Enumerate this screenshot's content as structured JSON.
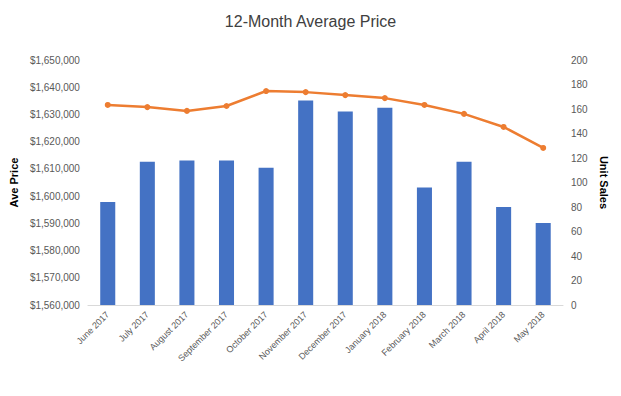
{
  "chart_data": {
    "type": "bar",
    "title": "12-Month Average Price",
    "y_label": "Ave Price",
    "y2_label": "Unit Sales",
    "categories": [
      "June 2017",
      "July 2017",
      "August 2017",
      "September 2017",
      "October 2017",
      "November 2017",
      "December 2017",
      "January 2018",
      "February 2018",
      "March 2018",
      "April 2018",
      "May 2018"
    ],
    "series": [
      {
        "name": "Unit Sales",
        "type": "bar",
        "axis": "y2",
        "color": "#4472c4",
        "values": [
          84,
          117,
          118,
          118,
          112,
          167,
          158,
          161,
          96,
          117,
          80,
          67
        ]
      },
      {
        "name": "Ave Price",
        "type": "line",
        "color": "#ed7d31",
        "marker": "circle",
        "values": [
          1633500,
          1632700,
          1631300,
          1633100,
          1638600,
          1638200,
          1637100,
          1636000,
          1633500,
          1630200,
          1625400,
          1617700
        ]
      }
    ],
    "ylim": [
      1560000,
      1650000
    ],
    "yticks": [
      {
        "value": 1560000,
        "label": "$1,560,000"
      },
      {
        "value": 1570000,
        "label": "$1,570,000"
      },
      {
        "value": 1580000,
        "label": "$1,580,000"
      },
      {
        "value": 1590000,
        "label": "$1,590,000"
      },
      {
        "value": 1600000,
        "label": "$1,600,000"
      },
      {
        "value": 1610000,
        "label": "$1,610,000"
      },
      {
        "value": 1620000,
        "label": "$1,620,000"
      },
      {
        "value": 1630000,
        "label": "$1,630,000"
      },
      {
        "value": 1640000,
        "label": "$1,640,000"
      },
      {
        "value": 1650000,
        "label": "$1,650,000"
      }
    ],
    "y2lim": [
      0,
      200
    ],
    "y2ticks": [
      0,
      20,
      40,
      60,
      80,
      100,
      120,
      140,
      160,
      180,
      200
    ],
    "grid": false
  }
}
